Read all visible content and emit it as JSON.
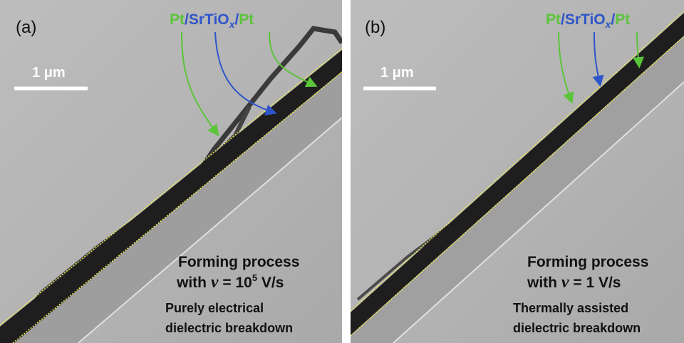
{
  "panels": [
    {
      "label": "(a)",
      "scale_bar": "1 μm",
      "layers": {
        "bottom": "Pt",
        "sep1": "/",
        "oxide": "SrTiO",
        "subscript": "x",
        "sep2": "/",
        "top": "Pt"
      },
      "forming": {
        "title": "Forming process",
        "prefix": "with",
        "symbol": "ν",
        "equals": "= 10",
        "exponent": "5",
        "unit": "V/s"
      },
      "description": [
        "Purely electrical",
        "dielectric breakdown"
      ]
    },
    {
      "label": "(b)",
      "scale_bar": "1 μm",
      "layers": {
        "bottom": "Pt",
        "sep1": "/",
        "oxide": "SrTiO",
        "subscript": "x",
        "sep2": "/",
        "top": "Pt"
      },
      "forming": {
        "title": "Forming process",
        "prefix": "with",
        "symbol": "ν",
        "equals": "= 1",
        "unit": "V/s"
      },
      "description": [
        "Thermally assisted",
        "dielectric breakdown"
      ]
    }
  ]
}
